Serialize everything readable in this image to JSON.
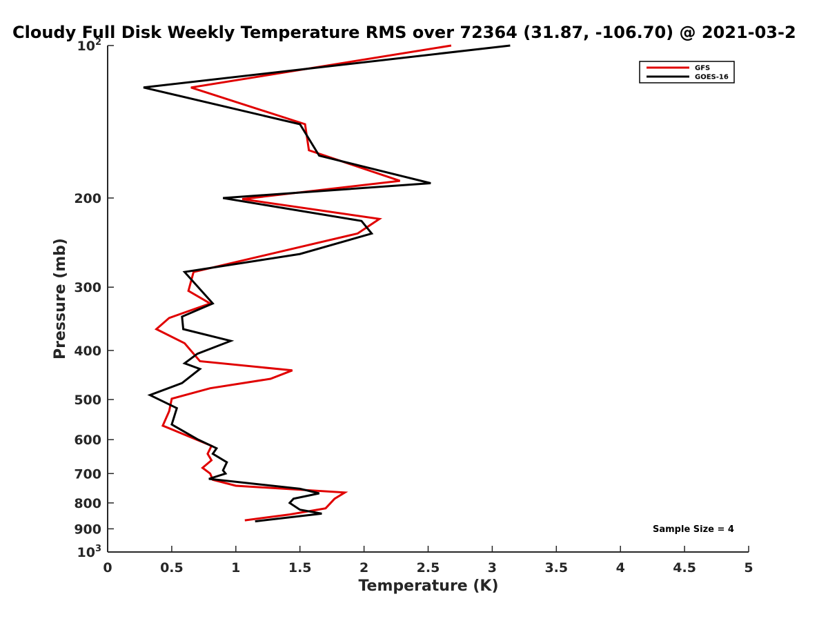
{
  "chart_data": {
    "type": "line",
    "title": "Cloudy Full Disk Weekly Temperature RMS over 72364 (31.87, -106.70) @ 2021-03-2",
    "xlabel": "Temperature (K)",
    "ylabel": "Pressure (mb)",
    "xlim": [
      0,
      5
    ],
    "ylim": [
      100,
      1000
    ],
    "y_scale": "log",
    "y_reversed": true,
    "x_ticks": [
      "0",
      "0.5",
      "1",
      "1.5",
      "2",
      "2.5",
      "3",
      "3.5",
      "4",
      "4.5",
      "5"
    ],
    "y_ticks": [
      {
        "value": 100,
        "base": "10",
        "exp": "2"
      },
      {
        "value": 200,
        "label": "200"
      },
      {
        "value": 300,
        "label": "300"
      },
      {
        "value": 400,
        "label": "400"
      },
      {
        "value": 500,
        "label": "500"
      },
      {
        "value": 600,
        "label": "600"
      },
      {
        "value": 700,
        "label": "700"
      },
      {
        "value": 800,
        "label": "800"
      },
      {
        "value": 900,
        "label": "900"
      },
      {
        "value": 1000,
        "base": "10",
        "exp": "3"
      }
    ],
    "legend_position": "top-right",
    "grid": false,
    "annotation": "Sample Size = 4",
    "series": [
      {
        "name": "GFS",
        "color": "#e00000",
        "points": [
          [
            2.68,
            100
          ],
          [
            0.65,
            121
          ],
          [
            1.54,
            143
          ],
          [
            1.57,
            161
          ],
          [
            2.28,
            185
          ],
          [
            1.05,
            201
          ],
          [
            2.12,
            220
          ],
          [
            1.95,
            235
          ],
          [
            0.67,
            280
          ],
          [
            0.63,
            305
          ],
          [
            0.8,
            323
          ],
          [
            0.48,
            345
          ],
          [
            0.38,
            363
          ],
          [
            0.6,
            387
          ],
          [
            0.72,
            420
          ],
          [
            1.44,
            438
          ],
          [
            1.27,
            455
          ],
          [
            0.8,
            475
          ],
          [
            0.5,
            498
          ],
          [
            0.48,
            527
          ],
          [
            0.43,
            563
          ],
          [
            0.81,
            617
          ],
          [
            0.78,
            640
          ],
          [
            0.81,
            659
          ],
          [
            0.74,
            682
          ],
          [
            0.8,
            700
          ],
          [
            0.82,
            720
          ],
          [
            1.0,
            740
          ],
          [
            1.85,
            763
          ],
          [
            1.77,
            785
          ],
          [
            1.7,
            820
          ],
          [
            1.42,
            843
          ],
          [
            1.07,
            866
          ]
        ]
      },
      {
        "name": "GOES-16",
        "color": "#000000",
        "points": [
          [
            3.14,
            100
          ],
          [
            0.28,
            121
          ],
          [
            1.5,
            143
          ],
          [
            1.65,
            165
          ],
          [
            2.52,
            187
          ],
          [
            0.9,
            200
          ],
          [
            1.98,
            222
          ],
          [
            2.06,
            235
          ],
          [
            1.5,
            258
          ],
          [
            0.6,
            280
          ],
          [
            0.82,
            323
          ],
          [
            0.58,
            343
          ],
          [
            0.59,
            363
          ],
          [
            0.96,
            383
          ],
          [
            0.7,
            406
          ],
          [
            0.6,
            424
          ],
          [
            0.72,
            435
          ],
          [
            0.58,
            464
          ],
          [
            0.33,
            490
          ],
          [
            0.54,
            520
          ],
          [
            0.5,
            560
          ],
          [
            0.7,
            599
          ],
          [
            0.85,
            624
          ],
          [
            0.82,
            640
          ],
          [
            0.93,
            665
          ],
          [
            0.9,
            690
          ],
          [
            0.92,
            700
          ],
          [
            0.79,
            717
          ],
          [
            1.5,
            750
          ],
          [
            1.65,
            766
          ],
          [
            1.45,
            785
          ],
          [
            1.42,
            800
          ],
          [
            1.5,
            825
          ],
          [
            1.67,
            840
          ],
          [
            1.15,
            870
          ]
        ]
      }
    ]
  }
}
